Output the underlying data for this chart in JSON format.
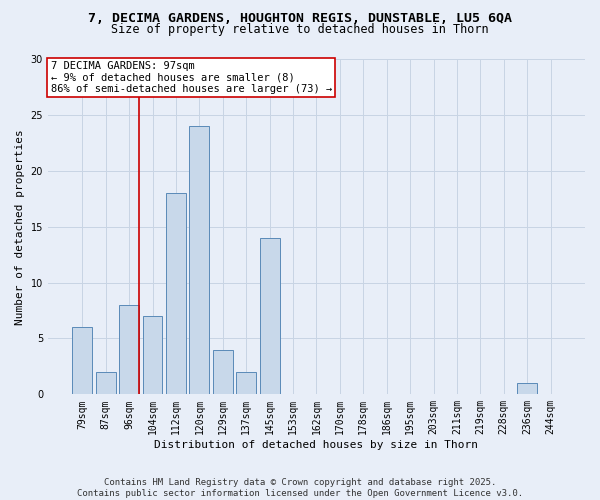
{
  "title_line1": "7, DECIMA GARDENS, HOUGHTON REGIS, DUNSTABLE, LU5 6QA",
  "title_line2": "Size of property relative to detached houses in Thorn",
  "xlabel": "Distribution of detached houses by size in Thorn",
  "ylabel": "Number of detached properties",
  "categories": [
    "79sqm",
    "87sqm",
    "96sqm",
    "104sqm",
    "112sqm",
    "120sqm",
    "129sqm",
    "137sqm",
    "145sqm",
    "153sqm",
    "162sqm",
    "170sqm",
    "178sqm",
    "186sqm",
    "195sqm",
    "203sqm",
    "211sqm",
    "219sqm",
    "228sqm",
    "236sqm",
    "244sqm"
  ],
  "values": [
    6,
    2,
    8,
    7,
    18,
    24,
    4,
    2,
    14,
    0,
    0,
    0,
    0,
    0,
    0,
    0,
    0,
    0,
    0,
    1,
    0
  ],
  "bar_color": "#c8d8ea",
  "bar_edge_color": "#5a8ab8",
  "vline_x_index": 2,
  "annotation_text_line1": "7 DECIMA GARDENS: 97sqm",
  "annotation_text_line2": "← 9% of detached houses are smaller (8)",
  "annotation_text_line3": "86% of semi-detached houses are larger (73) →",
  "annotation_box_facecolor": "#ffffff",
  "annotation_box_edgecolor": "#cc0000",
  "vline_color": "#cc0000",
  "ylim": [
    0,
    30
  ],
  "yticks": [
    0,
    5,
    10,
    15,
    20,
    25,
    30
  ],
  "grid_color": "#c8d4e4",
  "background_color": "#e8eef8",
  "footer_line1": "Contains HM Land Registry data © Crown copyright and database right 2025.",
  "footer_line2": "Contains public sector information licensed under the Open Government Licence v3.0.",
  "title_fontsize": 9.5,
  "subtitle_fontsize": 8.5,
  "axis_label_fontsize": 8,
  "tick_fontsize": 7,
  "annotation_fontsize": 7.5,
  "footer_fontsize": 6.5
}
